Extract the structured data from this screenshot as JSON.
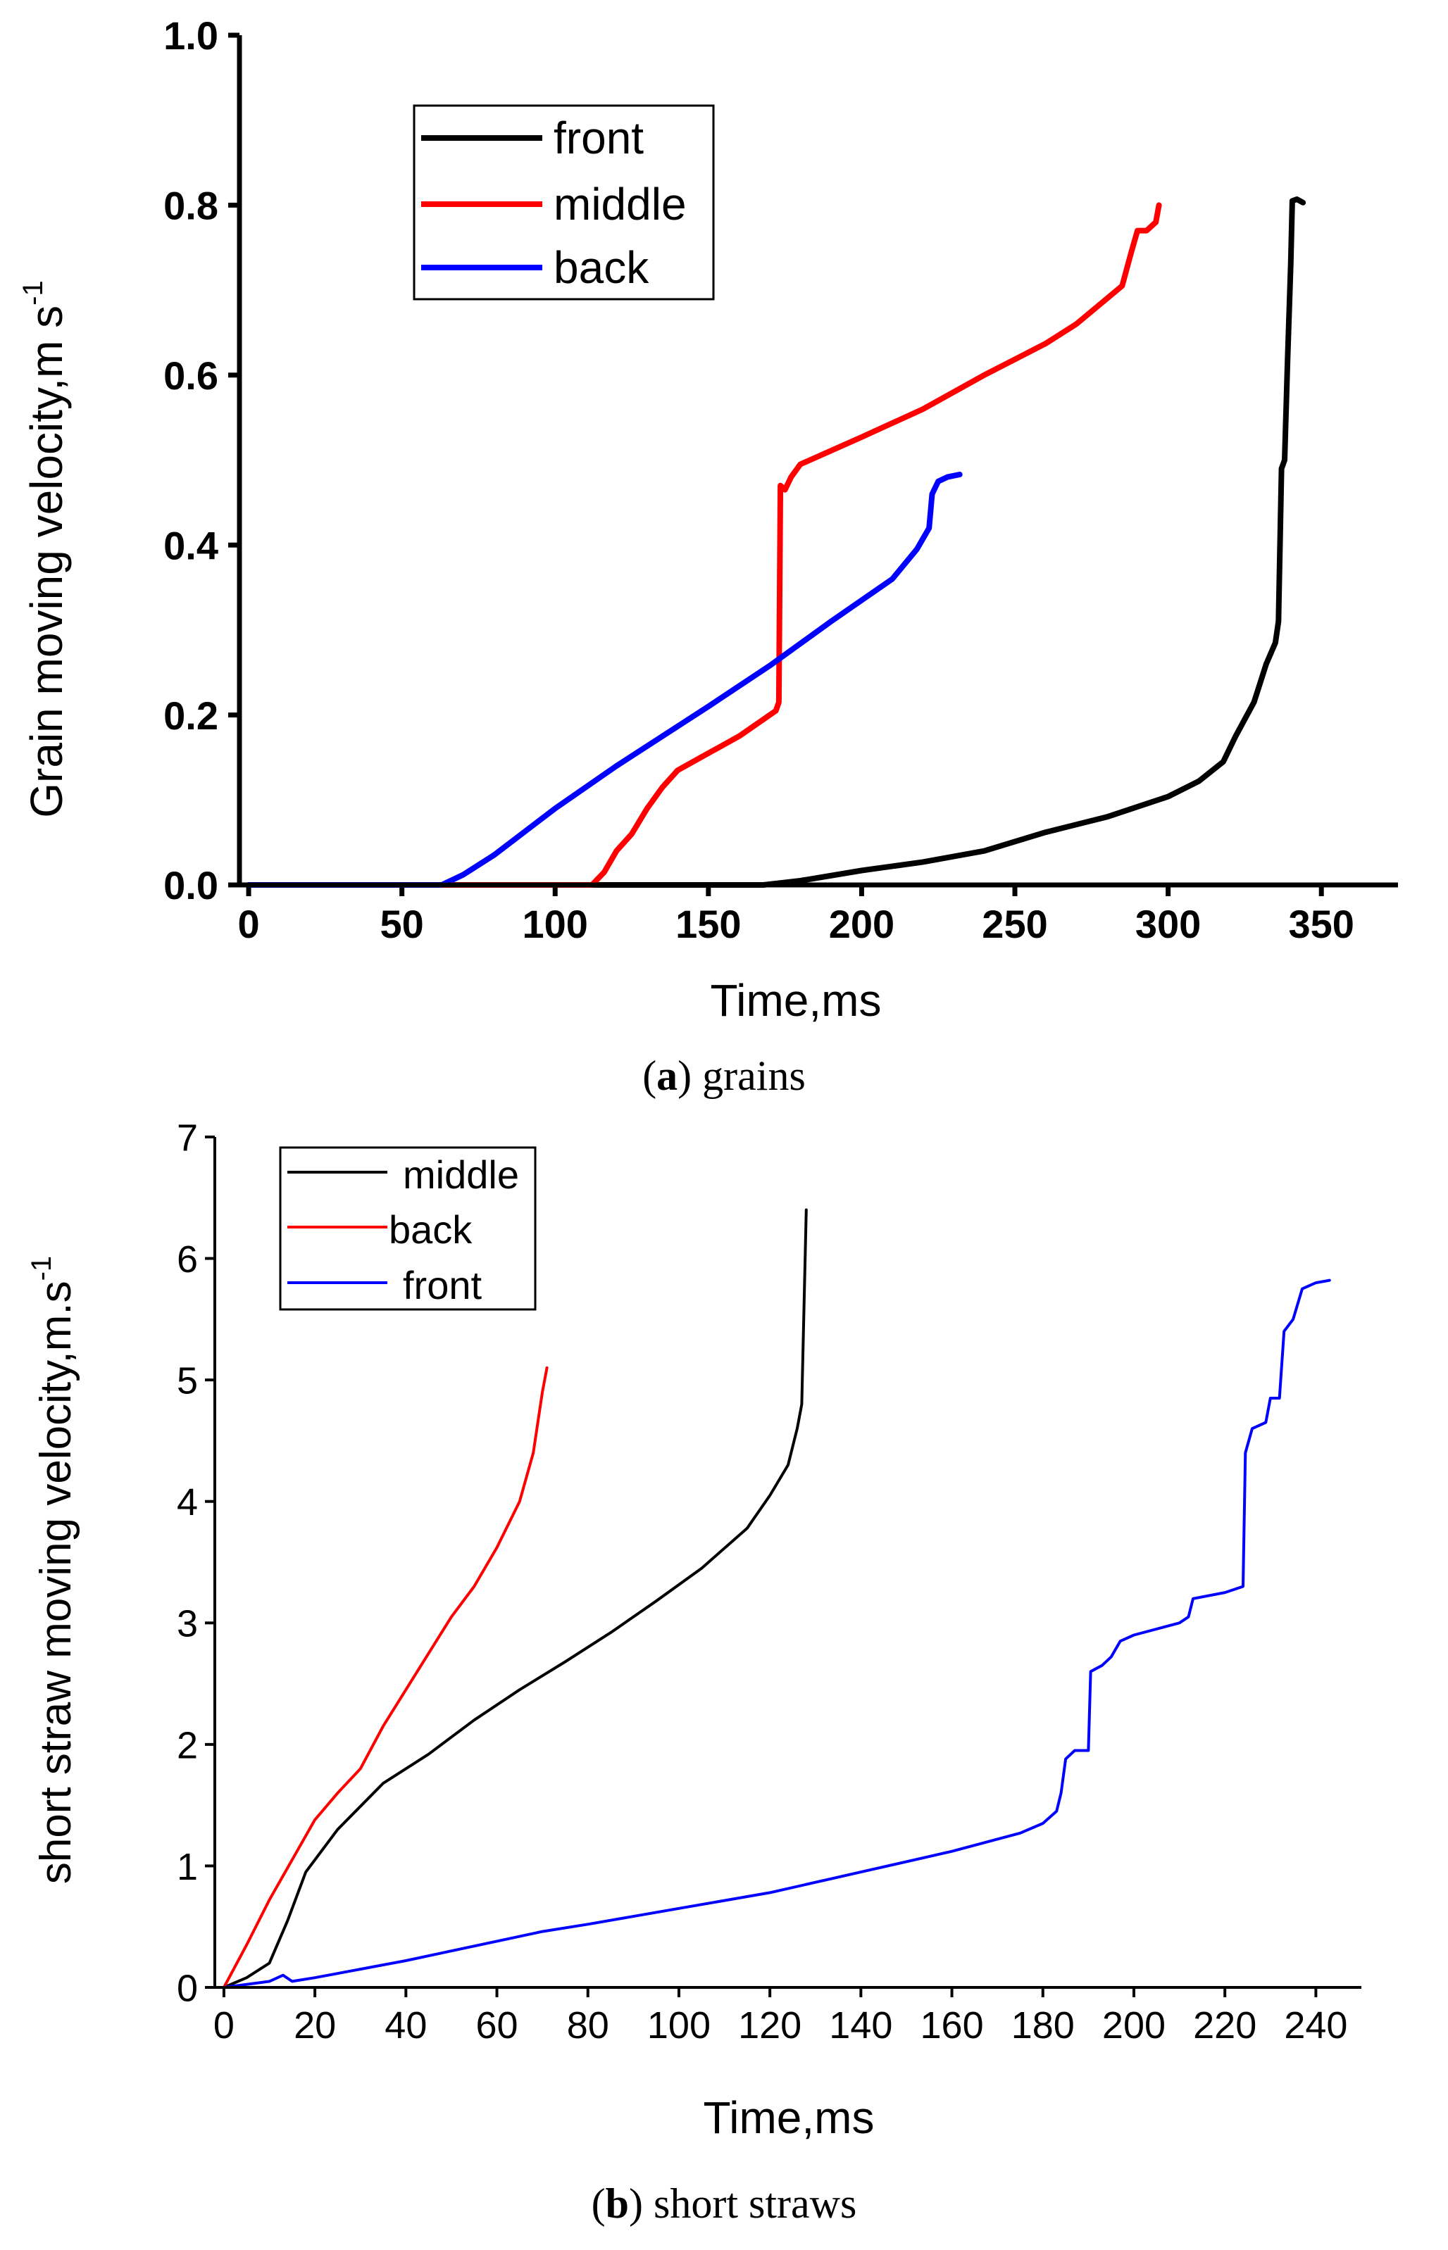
{
  "chart_data": [
    {
      "type": "line",
      "caption_label": "a",
      "caption_text": " grains",
      "xlabel": "Time,ms",
      "ylabel": "Grain moving velocity,m s",
      "ylabel_sup": "-1",
      "xlim": [
        -3,
        375
      ],
      "ylim": [
        0,
        1.0
      ],
      "xticks": [
        0,
        50,
        100,
        150,
        200,
        250,
        300,
        350
      ],
      "yticks": [
        0.0,
        0.2,
        0.4,
        0.6,
        0.8,
        1.0
      ],
      "ytick_labels": [
        "0.0",
        "0.2",
        "0.4",
        "0.6",
        "0.8",
        "1.0"
      ],
      "legend_position": "top-left",
      "series": [
        {
          "name": "front",
          "color": "#000000",
          "points": [
            [
              0,
              0
            ],
            [
              168,
              0
            ],
            [
              180,
              0.005
            ],
            [
              200,
              0.017
            ],
            [
              220,
              0.027
            ],
            [
              240,
              0.04
            ],
            [
              260,
              0.062
            ],
            [
              280,
              0.08
            ],
            [
              300,
              0.104
            ],
            [
              310,
              0.122
            ],
            [
              318,
              0.145
            ],
            [
              322,
              0.175
            ],
            [
              328,
              0.215
            ],
            [
              332,
              0.26
            ],
            [
              335,
              0.285
            ],
            [
              336,
              0.31
            ],
            [
              337,
              0.49
            ],
            [
              338,
              0.5
            ],
            [
              339,
              0.62
            ],
            [
              340,
              0.73
            ],
            [
              340.5,
              0.805
            ],
            [
              342,
              0.807
            ],
            [
              344,
              0.803
            ]
          ]
        },
        {
          "name": "middle",
          "color": "#ff0000",
          "points": [
            [
              0,
              0
            ],
            [
              112,
              0
            ],
            [
              116,
              0.015
            ],
            [
              120,
              0.04
            ],
            [
              125,
              0.06
            ],
            [
              130,
              0.09
            ],
            [
              135,
              0.115
            ],
            [
              140,
              0.135
            ],
            [
              150,
              0.155
            ],
            [
              160,
              0.175
            ],
            [
              172,
              0.205
            ],
            [
              173,
              0.215
            ],
            [
              173.5,
              0.47
            ],
            [
              175,
              0.465
            ],
            [
              177,
              0.48
            ],
            [
              180,
              0.495
            ],
            [
              200,
              0.527
            ],
            [
              220,
              0.56
            ],
            [
              240,
              0.6
            ],
            [
              260,
              0.637
            ],
            [
              270,
              0.66
            ],
            [
              280,
              0.69
            ],
            [
              285,
              0.705
            ],
            [
              288,
              0.745
            ],
            [
              290,
              0.77
            ],
            [
              293,
              0.77
            ],
            [
              296,
              0.78
            ],
            [
              297,
              0.8
            ]
          ]
        },
        {
          "name": "back",
          "color": "#0000ff",
          "points": [
            [
              0,
              0
            ],
            [
              63,
              0
            ],
            [
              70,
              0.012
            ],
            [
              80,
              0.035
            ],
            [
              100,
              0.09
            ],
            [
              120,
              0.14
            ],
            [
              150,
              0.21
            ],
            [
              170,
              0.258
            ],
            [
              190,
              0.31
            ],
            [
              210,
              0.36
            ],
            [
              218,
              0.395
            ],
            [
              222,
              0.42
            ],
            [
              223,
              0.46
            ],
            [
              225,
              0.475
            ],
            [
              228,
              0.48
            ],
            [
              232,
              0.483
            ]
          ]
        }
      ]
    },
    {
      "type": "line",
      "caption_label": "b",
      "caption_text": " short straws",
      "xlabel": "Time,ms",
      "ylabel": "short straw moving velocity,m.s",
      "ylabel_sup": "-1",
      "xlim": [
        -2,
        250
      ],
      "ylim": [
        0,
        7
      ],
      "xticks": [
        0,
        20,
        40,
        60,
        80,
        100,
        120,
        140,
        160,
        180,
        200,
        220,
        240
      ],
      "yticks": [
        0,
        1,
        2,
        3,
        4,
        5,
        6,
        7
      ],
      "ytick_labels": [
        "0",
        "1",
        "2",
        "3",
        "4",
        "5",
        "6",
        "7"
      ],
      "legend_position": "top-left",
      "series": [
        {
          "name": "middle",
          "color": "#000000",
          "points": [
            [
              0,
              0
            ],
            [
              5,
              0.08
            ],
            [
              10,
              0.2
            ],
            [
              14,
              0.55
            ],
            [
              18,
              0.95
            ],
            [
              25,
              1.3
            ],
            [
              35,
              1.68
            ],
            [
              45,
              1.92
            ],
            [
              55,
              2.2
            ],
            [
              65,
              2.45
            ],
            [
              75,
              2.68
            ],
            [
              85,
              2.92
            ],
            [
              95,
              3.18
            ],
            [
              105,
              3.45
            ],
            [
              115,
              3.78
            ],
            [
              120,
              4.05
            ],
            [
              124,
              4.3
            ],
            [
              126,
              4.6
            ],
            [
              127,
              4.8
            ],
            [
              127.5,
              5.6
            ],
            [
              128,
              6.4
            ]
          ]
        },
        {
          "name": "back",
          "color": "#ff0000",
          "points": [
            [
              0,
              0
            ],
            [
              5,
              0.35
            ],
            [
              10,
              0.72
            ],
            [
              15,
              1.05
            ],
            [
              20,
              1.38
            ],
            [
              25,
              1.6
            ],
            [
              30,
              1.8
            ],
            [
              35,
              2.15
            ],
            [
              40,
              2.45
            ],
            [
              45,
              2.75
            ],
            [
              50,
              3.05
            ],
            [
              55,
              3.3
            ],
            [
              60,
              3.62
            ],
            [
              65,
              4.0
            ],
            [
              68,
              4.4
            ],
            [
              70,
              4.9
            ],
            [
              71,
              5.1
            ]
          ]
        },
        {
          "name": "front",
          "color": "#0000ff",
          "points": [
            [
              0,
              0
            ],
            [
              10,
              0.05
            ],
            [
              13,
              0.1
            ],
            [
              15,
              0.05
            ],
            [
              20,
              0.08
            ],
            [
              30,
              0.15
            ],
            [
              40,
              0.22
            ],
            [
              50,
              0.3
            ],
            [
              60,
              0.38
            ],
            [
              70,
              0.46
            ],
            [
              80,
              0.52
            ],
            [
              100,
              0.65
            ],
            [
              120,
              0.78
            ],
            [
              140,
              0.95
            ],
            [
              160,
              1.12
            ],
            [
              175,
              1.27
            ],
            [
              180,
              1.35
            ],
            [
              183,
              1.45
            ],
            [
              184,
              1.6
            ],
            [
              185,
              1.88
            ],
            [
              187,
              1.95
            ],
            [
              190,
              1.95
            ],
            [
              190.5,
              2.6
            ],
            [
              193,
              2.65
            ],
            [
              195,
              2.72
            ],
            [
              197,
              2.85
            ],
            [
              200,
              2.9
            ],
            [
              210,
              3.0
            ],
            [
              212,
              3.05
            ],
            [
              213,
              3.2
            ],
            [
              220,
              3.25
            ],
            [
              224,
              3.3
            ],
            [
              224.5,
              4.4
            ],
            [
              226,
              4.6
            ],
            [
              229,
              4.65
            ],
            [
              230,
              4.85
            ],
            [
              232,
              4.85
            ],
            [
              233,
              5.4
            ],
            [
              235,
              5.5
            ],
            [
              237,
              5.75
            ],
            [
              240,
              5.8
            ],
            [
              243,
              5.82
            ]
          ]
        }
      ]
    }
  ]
}
